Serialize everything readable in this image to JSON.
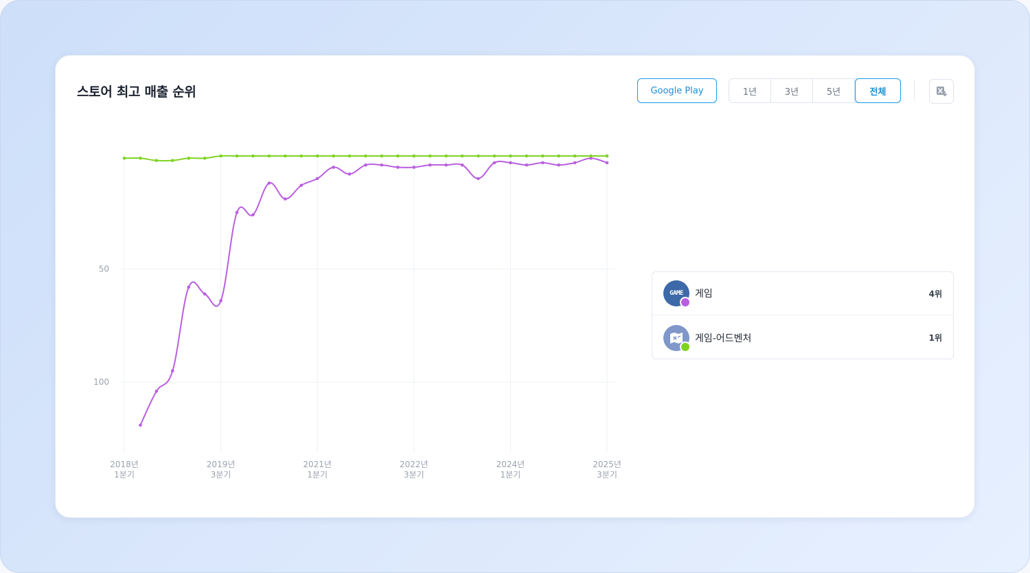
{
  "header": {
    "title": "스토어 최고 매출 순위",
    "store_label": "Google Play",
    "ranges": [
      "1년",
      "3년",
      "5년",
      "전체"
    ],
    "active_range": "전체"
  },
  "legend": [
    {
      "name": "게임",
      "rank": "4위",
      "color": "#b95ee0",
      "icon": "game-category-icon",
      "icon_text": "GAME"
    },
    {
      "name": "게임-어드벤처",
      "rank": "1위",
      "color": "#7ed321",
      "icon": "adventure-category-icon"
    }
  ],
  "chart_data": {
    "type": "line",
    "y_reversed": true,
    "ylim": [
      0,
      130
    ],
    "yticks": [
      50,
      100
    ],
    "x_tick_labels": [
      [
        "2018년",
        "1분기"
      ],
      [
        "2019년",
        "3분기"
      ],
      [
        "2021년",
        "1분기"
      ],
      [
        "2022년",
        "3분기"
      ],
      [
        "2024년",
        "1분기"
      ],
      [
        "2025년",
        "3분기"
      ]
    ],
    "x_tick_index": [
      0,
      6,
      12,
      18,
      24,
      30
    ],
    "n_points": 31,
    "grid": true,
    "series": [
      {
        "color": "#b95ee0",
        "values": [
          null,
          119,
          104,
          95,
          58,
          61,
          64,
          25,
          26,
          12,
          19,
          13,
          10,
          5,
          8,
          4,
          4,
          5,
          5,
          4,
          4,
          4,
          10,
          3,
          3,
          4,
          3,
          4,
          3,
          1,
          3
        ]
      },
      {
        "color": "#7ed321",
        "values": [
          1,
          1,
          2,
          2,
          1,
          1,
          0,
          0,
          0,
          0,
          0,
          0,
          0,
          0,
          0,
          0,
          0,
          0,
          0,
          0,
          0,
          0,
          0,
          0,
          0,
          0,
          0,
          0,
          0,
          0,
          0
        ]
      }
    ]
  }
}
